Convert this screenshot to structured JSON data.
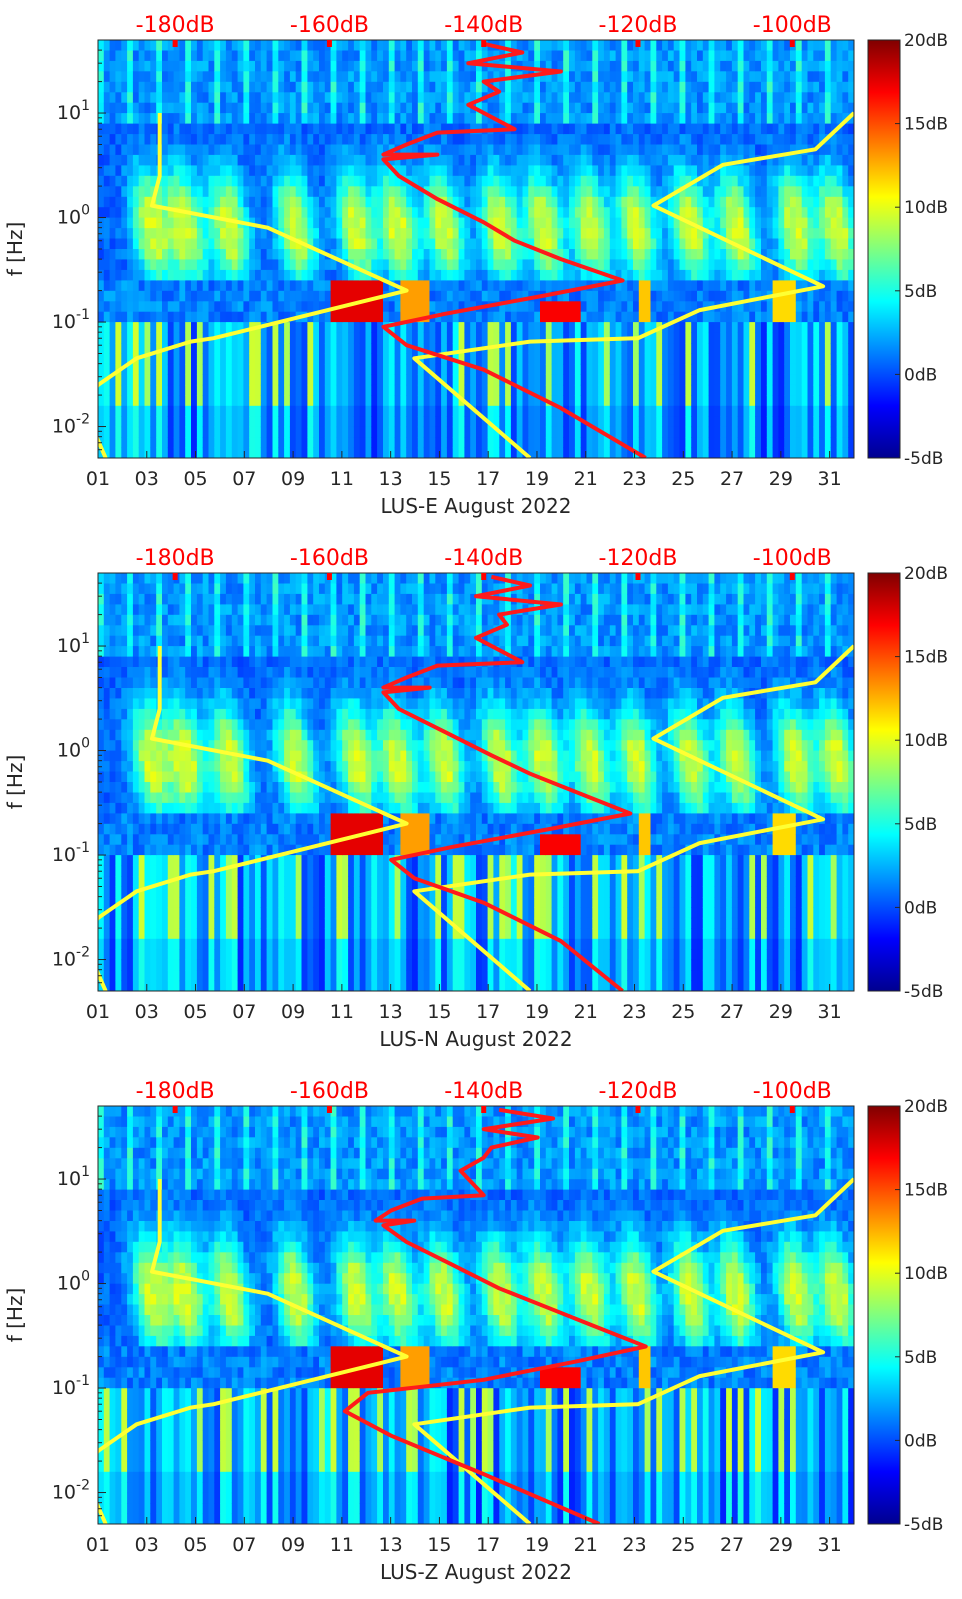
{
  "chart_data": [
    {
      "type": "heatmap",
      "xlabel": "LUS-E August 2022",
      "ylabel": "f [Hz]",
      "x_ticks": [
        "01",
        "03",
        "05",
        "07",
        "09",
        "11",
        "13",
        "15",
        "17",
        "19",
        "21",
        "23",
        "25",
        "27",
        "29",
        "31"
      ],
      "x_range": [
        1,
        32
      ],
      "y_ticks": [
        "10^-2",
        "10^-1",
        "10^0",
        "10^1"
      ],
      "y_range_hz": [
        0.005,
        50
      ],
      "y_scale": "log",
      "top_axis": {
        "ticks": [
          "-180dB",
          "-160dB",
          "-140dB",
          "-120dB",
          "-100dB"
        ],
        "range_db": [
          -190,
          -92
        ]
      },
      "colorbar": {
        "ticks": [
          "20dB",
          "15dB",
          "10dB",
          "5dB",
          "0dB",
          "-5dB"
        ],
        "range_db": [
          -5,
          20
        ],
        "colormap": "jet"
      },
      "noise_model_curves": [
        {
          "color": "#ffff33",
          "points_db_hz": [
            [
              -182,
              10
            ],
            [
              -182,
              2.5
            ],
            [
              -183,
              1.3
            ],
            [
              -168,
              0.8
            ],
            [
              -150,
              0.2
            ],
            [
              -175,
              0.07
            ],
            [
              -178,
              0.065
            ],
            [
              -185,
              0.045
            ],
            [
              -190,
              0.025
            ],
            [
              -192,
              0.016
            ],
            [
              -189,
              0.005
            ]
          ]
        },
        {
          "color": "#ffff33",
          "points_db_hz": [
            [
              -92,
              10
            ],
            [
              -97,
              4.5
            ],
            [
              -109,
              3.2
            ],
            [
              -118,
              1.3
            ],
            [
              -96,
              0.22
            ],
            [
              -112,
              0.13
            ],
            [
              -120,
              0.07
            ],
            [
              -134,
              0.065
            ],
            [
              -149,
              0.045
            ],
            [
              -134,
              0.005
            ]
          ]
        }
      ],
      "series": [
        {
          "color": "#ff1a1a",
          "points_db_hz": [
            [
              -140,
              46
            ],
            [
              -135,
              38
            ],
            [
              -142,
              30
            ],
            [
              -130,
              25
            ],
            [
              -140,
              20
            ],
            [
              -138,
              16
            ],
            [
              -142,
              12
            ],
            [
              -136,
              7
            ],
            [
              -146,
              6.5
            ],
            [
              -150,
              5
            ],
            [
              -153,
              4
            ],
            [
              -146,
              4
            ],
            [
              -153,
              3.6
            ],
            [
              -151,
              2.5
            ],
            [
              -146,
              1.5
            ],
            [
              -140,
              0.9
            ],
            [
              -136,
              0.6
            ],
            [
              -130,
              0.4
            ],
            [
              -122,
              0.25
            ],
            [
              -132,
              0.18
            ],
            [
              -145,
              0.12
            ],
            [
              -153,
              0.09
            ],
            [
              -150,
              0.06
            ],
            [
              -140,
              0.035
            ],
            [
              -130,
              0.015
            ],
            [
              -119,
              0.005
            ]
          ]
        }
      ]
    },
    {
      "type": "heatmap",
      "xlabel": "LUS-N August 2022",
      "ylabel": "f [Hz]",
      "x_ticks": [
        "01",
        "03",
        "05",
        "07",
        "09",
        "11",
        "13",
        "15",
        "17",
        "19",
        "21",
        "23",
        "25",
        "27",
        "29",
        "31"
      ],
      "x_range": [
        1,
        32
      ],
      "y_ticks": [
        "10^-2",
        "10^-1",
        "10^0",
        "10^1"
      ],
      "y_range_hz": [
        0.005,
        50
      ],
      "y_scale": "log",
      "top_axis": {
        "ticks": [
          "-180dB",
          "-160dB",
          "-140dB",
          "-120dB",
          "-100dB"
        ],
        "range_db": [
          -190,
          -92
        ]
      },
      "colorbar": {
        "ticks": [
          "20dB",
          "15dB",
          "10dB",
          "5dB",
          "0dB",
          "-5dB"
        ],
        "range_db": [
          -5,
          20
        ],
        "colormap": "jet"
      },
      "noise_model_curves": [
        {
          "color": "#ffff33",
          "points_db_hz": [
            [
              -182,
              10
            ],
            [
              -182,
              2.5
            ],
            [
              -183,
              1.3
            ],
            [
              -168,
              0.8
            ],
            [
              -150,
              0.2
            ],
            [
              -175,
              0.07
            ],
            [
              -178,
              0.065
            ],
            [
              -185,
              0.045
            ],
            [
              -190,
              0.025
            ],
            [
              -192,
              0.016
            ],
            [
              -189,
              0.005
            ]
          ]
        },
        {
          "color": "#ffff33",
          "points_db_hz": [
            [
              -92,
              10
            ],
            [
              -97,
              4.5
            ],
            [
              -109,
              3.2
            ],
            [
              -118,
              1.3
            ],
            [
              -96,
              0.22
            ],
            [
              -112,
              0.13
            ],
            [
              -120,
              0.07
            ],
            [
              -134,
              0.065
            ],
            [
              -149,
              0.045
            ],
            [
              -134,
              0.005
            ]
          ]
        }
      ],
      "series": [
        {
          "color": "#ff1a1a",
          "points_db_hz": [
            [
              -139,
              46
            ],
            [
              -134,
              38
            ],
            [
              -141,
              30
            ],
            [
              -130,
              25
            ],
            [
              -138,
              20
            ],
            [
              -137,
              16
            ],
            [
              -141,
              12
            ],
            [
              -135,
              7
            ],
            [
              -146,
              6.5
            ],
            [
              -150,
              5
            ],
            [
              -153,
              4
            ],
            [
              -147,
              4
            ],
            [
              -153,
              3.6
            ],
            [
              -151,
              2.5
            ],
            [
              -145,
              1.5
            ],
            [
              -139,
              0.9
            ],
            [
              -134,
              0.6
            ],
            [
              -128,
              0.4
            ],
            [
              -121,
              0.25
            ],
            [
              -131,
              0.18
            ],
            [
              -144,
              0.12
            ],
            [
              -152,
              0.09
            ],
            [
              -149,
              0.06
            ],
            [
              -140,
              0.035
            ],
            [
              -130,
              0.015
            ],
            [
              -122,
              0.005
            ]
          ]
        }
      ]
    },
    {
      "type": "heatmap",
      "xlabel": "LUS-Z August 2022",
      "ylabel": "f [Hz]",
      "x_ticks": [
        "01",
        "03",
        "05",
        "07",
        "09",
        "11",
        "13",
        "15",
        "17",
        "19",
        "21",
        "23",
        "25",
        "27",
        "29",
        "31"
      ],
      "x_range": [
        1,
        32
      ],
      "y_ticks": [
        "10^-2",
        "10^-1",
        "10^0",
        "10^1"
      ],
      "y_range_hz": [
        0.005,
        50
      ],
      "y_scale": "log",
      "top_axis": {
        "ticks": [
          "-180dB",
          "-160dB",
          "-140dB",
          "-120dB",
          "-100dB"
        ],
        "range_db": [
          -190,
          -92
        ]
      },
      "colorbar": {
        "ticks": [
          "20dB",
          "15dB",
          "10dB",
          "5dB",
          "0dB",
          "-5dB"
        ],
        "range_db": [
          -5,
          20
        ],
        "colormap": "jet"
      },
      "noise_model_curves": [
        {
          "color": "#ffff33",
          "points_db_hz": [
            [
              -182,
              10
            ],
            [
              -182,
              2.5
            ],
            [
              -183,
              1.3
            ],
            [
              -168,
              0.8
            ],
            [
              -150,
              0.2
            ],
            [
              -175,
              0.07
            ],
            [
              -178,
              0.065
            ],
            [
              -185,
              0.045
            ],
            [
              -190,
              0.025
            ],
            [
              -192,
              0.016
            ],
            [
              -189,
              0.005
            ]
          ]
        },
        {
          "color": "#ffff33",
          "points_db_hz": [
            [
              -92,
              10
            ],
            [
              -97,
              4.5
            ],
            [
              -109,
              3.2
            ],
            [
              -118,
              1.3
            ],
            [
              -96,
              0.22
            ],
            [
              -112,
              0.13
            ],
            [
              -120,
              0.07
            ],
            [
              -134,
              0.065
            ],
            [
              -149,
              0.045
            ],
            [
              -134,
              0.005
            ]
          ]
        }
      ],
      "series": [
        {
          "color": "#ff1a1a",
          "points_db_hz": [
            [
              -138,
              46
            ],
            [
              -131,
              38
            ],
            [
              -140,
              30
            ],
            [
              -133,
              25
            ],
            [
              -139,
              20
            ],
            [
              -140,
              16
            ],
            [
              -143,
              12
            ],
            [
              -140,
              7
            ],
            [
              -148,
              6.5
            ],
            [
              -152,
              5
            ],
            [
              -154,
              4
            ],
            [
              -149,
              4
            ],
            [
              -153,
              3.6
            ],
            [
              -150,
              2.5
            ],
            [
              -144,
              1.5
            ],
            [
              -138,
              0.9
            ],
            [
              -132,
              0.6
            ],
            [
              -126,
              0.4
            ],
            [
              -119,
              0.25
            ],
            [
              -128,
              0.18
            ],
            [
              -140,
              0.12
            ],
            [
              -155,
              0.09
            ],
            [
              -158,
              0.06
            ],
            [
              -152,
              0.035
            ],
            [
              -140,
              0.015
            ],
            [
              -125,
              0.005
            ]
          ]
        }
      ]
    }
  ]
}
